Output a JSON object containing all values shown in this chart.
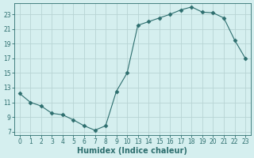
{
  "x": [
    0,
    1,
    2,
    3,
    4,
    5,
    6,
    7,
    8,
    9,
    10,
    13,
    14,
    15,
    16,
    17,
    18,
    19,
    20,
    21,
    22,
    23
  ],
  "y": [
    12.2,
    11.0,
    10.5,
    9.5,
    9.3,
    8.6,
    7.8,
    7.2,
    7.8,
    12.5,
    15.0,
    21.5,
    22.0,
    22.5,
    23.0,
    23.6,
    24.0,
    23.3,
    23.2,
    22.5,
    19.5,
    17.0
  ],
  "line_color": "#2d6e6e",
  "marker": "D",
  "marker_size": 2.5,
  "bg_color": "#d5efef",
  "grid_color": "#b8d4d4",
  "xlabel": "Humidex (Indice chaleur)",
  "xticks": [
    0,
    1,
    2,
    3,
    4,
    5,
    6,
    7,
    8,
    9,
    10,
    13,
    14,
    15,
    16,
    17,
    18,
    19,
    20,
    21,
    22,
    23
  ],
  "yticks": [
    7,
    9,
    11,
    13,
    15,
    17,
    19,
    21,
    23
  ],
  "ylim": [
    6.5,
    24.5
  ],
  "xlim": [
    -0.5,
    23.5
  ],
  "tick_fontsize": 5.5,
  "label_fontsize": 7,
  "label_color": "#2d6e6e",
  "tick_color": "#2d6e6e",
  "spine_color": "#2d6e6e"
}
